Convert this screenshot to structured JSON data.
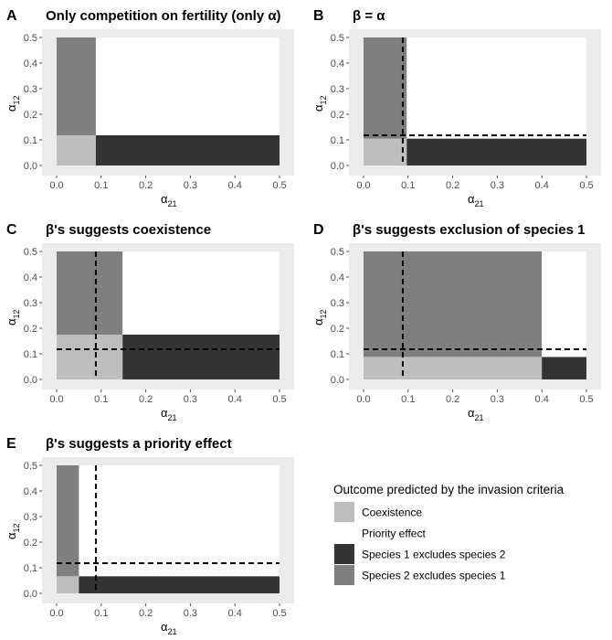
{
  "colors": {
    "coexistence": "#bebebe",
    "priority_effect": "#ffffff",
    "species1_excludes_species2": "#333333",
    "species2_excludes_species1": "#7f7f7f",
    "panel_background": "#ebebeb"
  },
  "chart_data": [
    {
      "type": "heatmap",
      "letter": "A",
      "title": "Only competition on fertility (only α)",
      "xlabel_main": "α",
      "xlabel_sub": "21",
      "ylabel_main": "α",
      "ylabel_sub": "12",
      "xlim": [
        0,
        0.5
      ],
      "ylim": [
        0,
        0.5
      ],
      "xticks": [
        "0.0",
        "0.1",
        "0.2",
        "0.3",
        "0.4",
        "0.5"
      ],
      "yticks": [
        "0.0",
        "0.1",
        "0.2",
        "0.3",
        "0.4",
        "0.5"
      ],
      "x_threshold": 0.088,
      "y_threshold": 0.118,
      "regions": {
        "low_x_low_y": "coexistence",
        "low_x_high_y": "species2_excludes_species1",
        "high_x_low_y": "species1_excludes_species2",
        "high_x_high_y": "priority_effect"
      },
      "dashed_lines": null
    },
    {
      "type": "heatmap",
      "letter": "B",
      "title": "β = α",
      "xlabel_main": "α",
      "xlabel_sub": "21",
      "ylabel_main": "α",
      "ylabel_sub": "12",
      "xlim": [
        0,
        0.5
      ],
      "ylim": [
        0,
        0.5
      ],
      "xticks": [
        "0.0",
        "0.1",
        "0.2",
        "0.3",
        "0.4",
        "0.5"
      ],
      "yticks": [
        "0.0",
        "0.1",
        "0.2",
        "0.3",
        "0.4",
        "0.5"
      ],
      "x_threshold": 0.097,
      "y_threshold": 0.105,
      "regions": {
        "low_x_low_y": "coexistence",
        "low_x_high_y": "species2_excludes_species1",
        "high_x_low_y": "species1_excludes_species2",
        "high_x_high_y": "priority_effect"
      },
      "dashed_lines": {
        "x": 0.088,
        "y": 0.118
      }
    },
    {
      "type": "heatmap",
      "letter": "C",
      "title": "β's suggests coexistence",
      "xlabel_main": "α",
      "xlabel_sub": "21",
      "ylabel_main": "α",
      "ylabel_sub": "12",
      "xlim": [
        0,
        0.5
      ],
      "ylim": [
        0,
        0.5
      ],
      "xticks": [
        "0.0",
        "0.1",
        "0.2",
        "0.3",
        "0.4",
        "0.5"
      ],
      "yticks": [
        "0.0",
        "0.1",
        "0.2",
        "0.3",
        "0.4",
        "0.5"
      ],
      "x_threshold": 0.148,
      "y_threshold": 0.175,
      "regions": {
        "low_x_low_y": "coexistence",
        "low_x_high_y": "species2_excludes_species1",
        "high_x_low_y": "species1_excludes_species2",
        "high_x_high_y": "priority_effect"
      },
      "dashed_lines": {
        "x": 0.088,
        "y": 0.118
      }
    },
    {
      "type": "heatmap",
      "letter": "D",
      "title": "β's suggests exclusion of species 1",
      "xlabel_main": "α",
      "xlabel_sub": "21",
      "ylabel_main": "α",
      "ylabel_sub": "12",
      "xlim": [
        0,
        0.5
      ],
      "ylim": [
        0,
        0.5
      ],
      "xticks": [
        "0.0",
        "0.1",
        "0.2",
        "0.3",
        "0.4",
        "0.5"
      ],
      "yticks": [
        "0.0",
        "0.1",
        "0.2",
        "0.3",
        "0.4",
        "0.5"
      ],
      "x_threshold": 0.4,
      "y_threshold": 0.088,
      "regions": {
        "low_x_low_y": "coexistence",
        "low_x_high_y": "species2_excludes_species1",
        "high_x_low_y": "species1_excludes_species2",
        "high_x_high_y": "priority_effect"
      },
      "dashed_lines": {
        "x": 0.088,
        "y": 0.118
      }
    },
    {
      "type": "heatmap",
      "letter": "E",
      "title": "β's suggests a priority effect",
      "xlabel_main": "α",
      "xlabel_sub": "21",
      "ylabel_main": "α",
      "ylabel_sub": "12",
      "xlim": [
        0,
        0.5
      ],
      "ylim": [
        0,
        0.5
      ],
      "xticks": [
        "0.0",
        "0.1",
        "0.2",
        "0.3",
        "0.4",
        "0.5"
      ],
      "yticks": [
        "0.0",
        "0.1",
        "0.2",
        "0.3",
        "0.4",
        "0.5"
      ],
      "x_threshold": 0.05,
      "y_threshold": 0.067,
      "regions": {
        "low_x_low_y": "coexistence",
        "low_x_high_y": "species2_excludes_species1",
        "high_x_low_y": "species1_excludes_species2",
        "high_x_high_y": "priority_effect"
      },
      "dashed_lines": {
        "x": 0.088,
        "y": 0.118
      }
    }
  ],
  "legend": {
    "title": "Outcome predicted by the invasion criteria",
    "items": [
      {
        "key": "coexistence",
        "label": "Coexistence"
      },
      {
        "key": "priority_effect",
        "label": "Priority effect"
      },
      {
        "key": "species1_excludes_species2",
        "label": "Species 1 excludes species 2"
      },
      {
        "key": "species2_excludes_species1",
        "label": "Species 2 excludes species 1"
      }
    ]
  }
}
